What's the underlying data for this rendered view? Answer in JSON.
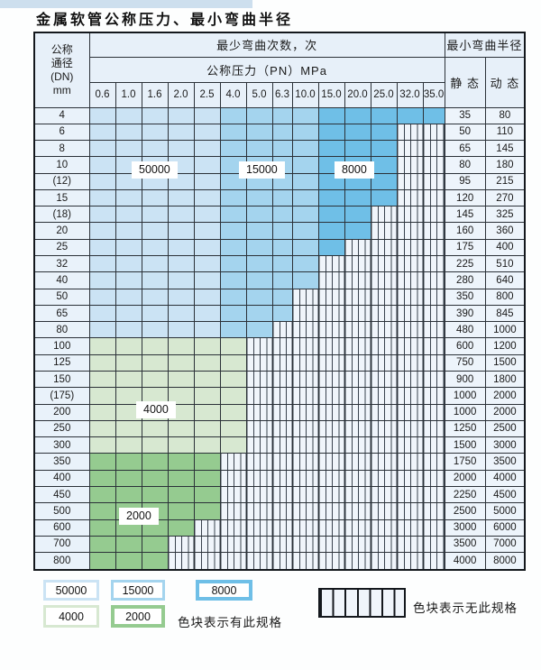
{
  "page_title": "金属软管公称压力、最小弯曲半径",
  "colors": {
    "cycles_50000": "#cbe3f4",
    "cycles_15000": "#a4d4ee",
    "cycles_8000": "#6fbfe7",
    "cycles_4000": "#d7e8d1",
    "cycles_2000": "#95cb90",
    "striped_bg": "#f0f5fb"
  },
  "table": {
    "dn_header_lines": [
      "公称",
      "通径",
      "(DN)",
      "mm"
    ],
    "bend_cycles_header": "最少弯曲次数，次",
    "pressure_header": "公称压力（PN）MPa",
    "radius_header": "最小弯曲半径",
    "static_header": "静 态",
    "dynamic_header": "动 态",
    "pressure_columns": [
      "0.6",
      "1.0",
      "1.6",
      "2.0",
      "2.5",
      "4.0",
      "5.0",
      "6.3",
      "10.0",
      "15.0",
      "20.0",
      "25.0",
      "32.0",
      "35.0"
    ],
    "zone_labels": [
      "50000",
      "15000",
      "8000",
      "4000",
      "2000"
    ],
    "rows": [
      {
        "dn": "4",
        "band": "blue",
        "colored": 14,
        "static": "35",
        "dynamic": "80"
      },
      {
        "dn": "6",
        "band": "blue",
        "colored": 12,
        "static": "50",
        "dynamic": "110"
      },
      {
        "dn": "8",
        "band": "blue",
        "colored": 12,
        "static": "65",
        "dynamic": "145"
      },
      {
        "dn": "10",
        "band": "blue",
        "colored": 12,
        "static": "80",
        "dynamic": "180"
      },
      {
        "dn": "(12)",
        "band": "blue",
        "colored": 12,
        "static": "95",
        "dynamic": "215"
      },
      {
        "dn": "15",
        "band": "blue",
        "colored": 12,
        "static": "120",
        "dynamic": "270"
      },
      {
        "dn": "(18)",
        "band": "blue",
        "colored": 11,
        "static": "145",
        "dynamic": "325"
      },
      {
        "dn": "20",
        "band": "blue",
        "colored": 11,
        "static": "160",
        "dynamic": "360"
      },
      {
        "dn": "25",
        "band": "blue",
        "colored": 10,
        "static": "175",
        "dynamic": "400"
      },
      {
        "dn": "32",
        "band": "blue",
        "colored": 9,
        "static": "225",
        "dynamic": "510"
      },
      {
        "dn": "40",
        "band": "blue",
        "colored": 9,
        "static": "280",
        "dynamic": "640"
      },
      {
        "dn": "50",
        "band": "blue",
        "colored": 8,
        "static": "350",
        "dynamic": "800"
      },
      {
        "dn": "65",
        "band": "blue",
        "colored": 8,
        "static": "390",
        "dynamic": "845"
      },
      {
        "dn": "80",
        "band": "blue",
        "colored": 7,
        "static": "480",
        "dynamic": "1000"
      },
      {
        "dn": "100",
        "band": "green4000",
        "colored": 6,
        "static": "600",
        "dynamic": "1200"
      },
      {
        "dn": "125",
        "band": "green4000",
        "colored": 6,
        "static": "750",
        "dynamic": "1500"
      },
      {
        "dn": "150",
        "band": "green4000",
        "colored": 6,
        "static": "900",
        "dynamic": "1800"
      },
      {
        "dn": "(175)",
        "band": "green4000",
        "colored": 6,
        "static": "1000",
        "dynamic": "2000"
      },
      {
        "dn": "200",
        "band": "green4000",
        "colored": 6,
        "static": "1000",
        "dynamic": "2000"
      },
      {
        "dn": "250",
        "band": "green4000",
        "colored": 6,
        "static": "1250",
        "dynamic": "2500"
      },
      {
        "dn": "300",
        "band": "green4000",
        "colored": 6,
        "static": "1500",
        "dynamic": "3000"
      },
      {
        "dn": "350",
        "band": "green2000",
        "colored": 5,
        "static": "1750",
        "dynamic": "3500"
      },
      {
        "dn": "400",
        "band": "green2000",
        "colored": 5,
        "static": "2000",
        "dynamic": "4000"
      },
      {
        "dn": "450",
        "band": "green2000",
        "colored": 5,
        "static": "2250",
        "dynamic": "4500"
      },
      {
        "dn": "500",
        "band": "green2000",
        "colored": 5,
        "static": "2500",
        "dynamic": "5000"
      },
      {
        "dn": "600",
        "band": "green2000",
        "colored": 4,
        "static": "3000",
        "dynamic": "6000"
      },
      {
        "dn": "700",
        "band": "green2000",
        "colored": 3,
        "static": "3500",
        "dynamic": "7000"
      },
      {
        "dn": "800",
        "band": "green2000",
        "colored": 3,
        "static": "4000",
        "dynamic": "8000"
      }
    ]
  },
  "legend": {
    "items": [
      {
        "value": "50000",
        "color_key": "cycles_50000"
      },
      {
        "value": "15000",
        "color_key": "cycles_15000"
      },
      {
        "value": "8000",
        "color_key": "cycles_8000"
      },
      {
        "value": "4000",
        "color_key": "cycles_4000"
      },
      {
        "value": "2000",
        "color_key": "cycles_2000"
      }
    ],
    "has_spec_text": "色块表示有此规格",
    "no_spec_text": "色块表示无此规格"
  }
}
